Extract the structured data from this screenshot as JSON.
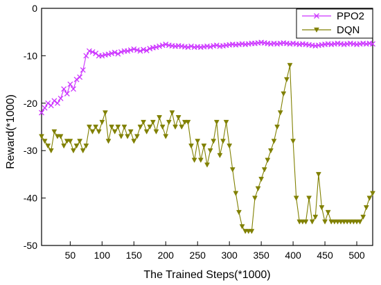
{
  "chart_data": {
    "type": "line",
    "xlabel": "The Trained Steps(*1000)",
    "ylabel": "Reward(*1000)",
    "xlim": [
      5,
      525
    ],
    "ylim": [
      -50,
      0
    ],
    "x_ticks": [
      50,
      100,
      150,
      200,
      250,
      300,
      350,
      400,
      450,
      500
    ],
    "y_ticks": [
      0,
      -10,
      -20,
      -30,
      -40,
      -50
    ],
    "grid": false,
    "legend_position": "top-right",
    "series": [
      {
        "name": "PPO2",
        "color": "#cc33ff",
        "marker": "x",
        "x": [
          5,
          10,
          15,
          20,
          25,
          30,
          35,
          40,
          45,
          50,
          55,
          60,
          65,
          70,
          75,
          80,
          85,
          90,
          95,
          100,
          105,
          110,
          115,
          120,
          125,
          130,
          135,
          140,
          145,
          150,
          155,
          160,
          165,
          170,
          175,
          180,
          185,
          190,
          195,
          200,
          205,
          210,
          215,
          220,
          225,
          230,
          235,
          240,
          245,
          250,
          255,
          260,
          265,
          270,
          275,
          280,
          285,
          290,
          295,
          300,
          305,
          310,
          315,
          320,
          325,
          330,
          335,
          340,
          345,
          350,
          355,
          360,
          365,
          370,
          375,
          380,
          385,
          390,
          395,
          400,
          405,
          410,
          415,
          420,
          425,
          430,
          435,
          440,
          445,
          450,
          455,
          460,
          465,
          470,
          475,
          480,
          485,
          490,
          495,
          500,
          505,
          510,
          515,
          520,
          525
        ],
        "y": [
          -22,
          -21,
          -20,
          -20.5,
          -19.5,
          -20,
          -19,
          -17,
          -18,
          -16,
          -17,
          -15,
          -14.5,
          -13,
          -10,
          -9,
          -9.2,
          -9.5,
          -10,
          -10,
          -9.8,
          -9.7,
          -9.5,
          -9.3,
          -9.6,
          -9.2,
          -9,
          -9,
          -8.8,
          -8.6,
          -8.8,
          -9,
          -8.7,
          -8.9,
          -8.5,
          -8.3,
          -8.2,
          -8,
          -7.8,
          -7.6,
          -7.8,
          -7.9,
          -8,
          -7.9,
          -8,
          -8.1,
          -8.2,
          -8,
          -8.2,
          -8.1,
          -8.2,
          -8.1,
          -8,
          -8.1,
          -7.9,
          -7.8,
          -8,
          -7.9,
          -7.8,
          -7.7,
          -7.6,
          -7.7,
          -7.6,
          -7.5,
          -7.6,
          -7.5,
          -7.4,
          -7.4,
          -7.3,
          -7.2,
          -7.3,
          -7.4,
          -7.5,
          -7.4,
          -7.5,
          -7.4,
          -7.3,
          -7.4,
          -7.5,
          -7.4,
          -7.5,
          -7.6,
          -7.5,
          -7.6,
          -7.7,
          -7.8,
          -7.9,
          -7.8,
          -7.7,
          -7.6,
          -7.5,
          -7.6,
          -7.5,
          -7.4,
          -7.5,
          -7.6,
          -7.5,
          -7.4,
          -7.5,
          -7.6,
          -7.5,
          -7.4,
          -7.5,
          -7.4,
          -7.5
        ]
      },
      {
        "name": "DQN",
        "color": "#808000",
        "marker": "triangle-down",
        "x": [
          5,
          10,
          15,
          20,
          25,
          30,
          35,
          40,
          45,
          50,
          55,
          60,
          65,
          70,
          75,
          80,
          85,
          90,
          95,
          100,
          105,
          110,
          115,
          120,
          125,
          130,
          135,
          140,
          145,
          150,
          155,
          160,
          165,
          170,
          175,
          180,
          185,
          190,
          195,
          200,
          205,
          210,
          215,
          220,
          225,
          230,
          235,
          240,
          245,
          250,
          255,
          260,
          265,
          270,
          275,
          280,
          285,
          290,
          295,
          300,
          305,
          310,
          315,
          320,
          325,
          330,
          335,
          340,
          345,
          350,
          355,
          360,
          365,
          370,
          375,
          380,
          385,
          390,
          395,
          400,
          405,
          410,
          415,
          420,
          425,
          430,
          435,
          440,
          445,
          450,
          455,
          460,
          465,
          470,
          475,
          480,
          485,
          490,
          495,
          500,
          505,
          510,
          515,
          520,
          525
        ],
        "y": [
          -27,
          -28,
          -29,
          -30,
          -26,
          -27,
          -27,
          -29,
          -28,
          -28,
          -30,
          -29,
          -28,
          -30,
          -29,
          -25,
          -26,
          -25,
          -26,
          -24,
          -22,
          -28,
          -25,
          -26,
          -25,
          -27,
          -25,
          -27,
          -26,
          -28,
          -27,
          -25,
          -24,
          -26,
          -25,
          -24,
          -26,
          -23,
          -25,
          -27,
          -24,
          -22,
          -25,
          -23,
          -25,
          -24,
          -24,
          -29,
          -32,
          -28,
          -32,
          -29,
          -33,
          -30,
          -28,
          -24,
          -31,
          -28,
          -24,
          -29,
          -34,
          -39,
          -43,
          -46,
          -47,
          -47,
          -47,
          -40,
          -38,
          -36,
          -34,
          -32,
          -30,
          -28,
          -25,
          -22,
          -18,
          -15,
          -12,
          -28,
          -40,
          -45,
          -45,
          -45,
          -40,
          -45,
          -44,
          -35,
          -42,
          -45,
          -43,
          -45,
          -45,
          -45,
          -45,
          -45,
          -45,
          -45,
          -45,
          -45,
          -45,
          -44,
          -42,
          -40,
          -39
        ]
      }
    ]
  }
}
